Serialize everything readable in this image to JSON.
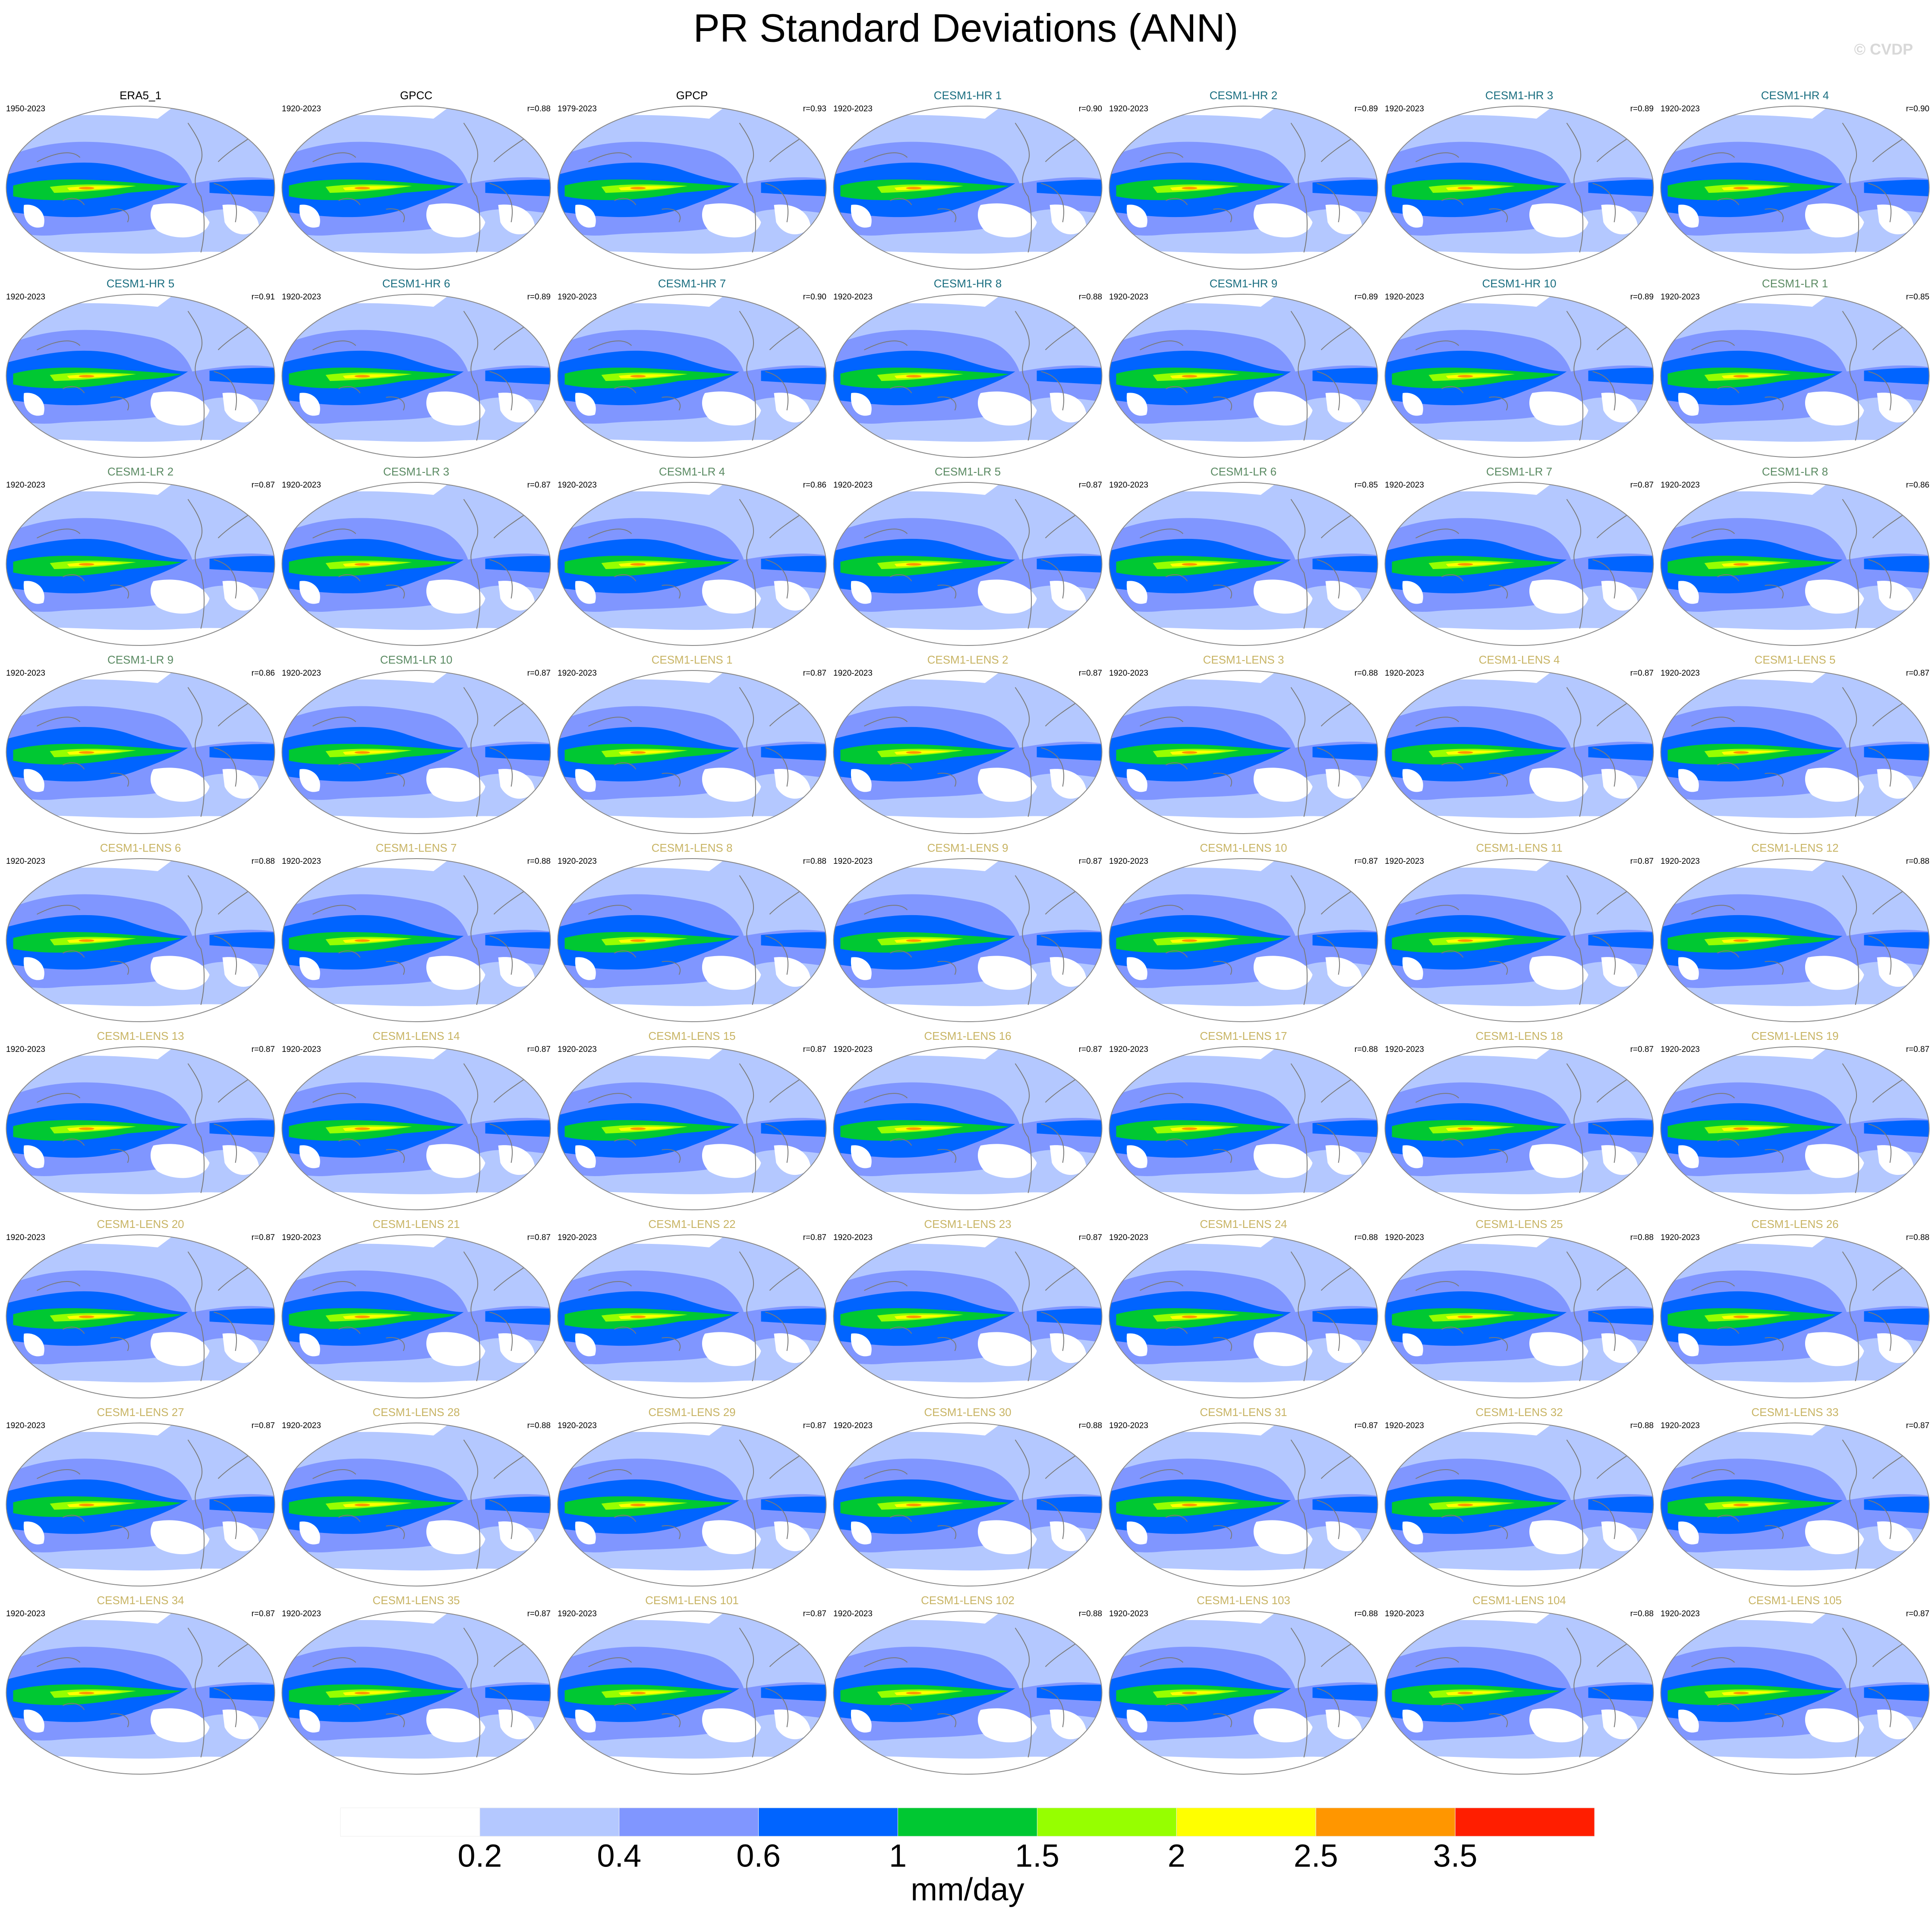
{
  "title": "PR Standard Deviations (ANN)",
  "watermark": "© CVDP",
  "panels": [
    {
      "title": "ERA5_1",
      "period": "1950-2023",
      "color": "#000000"
    },
    {
      "title": "GPCC",
      "period": "1920-2023",
      "r": "r=0.88",
      "color": "#000000"
    },
    {
      "title": "GPCP",
      "period": "1979-2023",
      "r": "r=0.93",
      "color": "#000000"
    },
    {
      "title": "CESM1-HR 1",
      "period": "1920-2023",
      "r": "r=0.90",
      "color": "#1a6e80"
    },
    {
      "title": "CESM1-HR 2",
      "period": "1920-2023",
      "r": "r=0.89",
      "color": "#1a6e80"
    },
    {
      "title": "CESM1-HR 3",
      "period": "1920-2023",
      "r": "r=0.89",
      "color": "#1a6e80"
    },
    {
      "title": "CESM1-HR 4",
      "period": "1920-2023",
      "r": "r=0.90",
      "color": "#1a6e80"
    },
    {
      "title": "CESM1-HR 5",
      "period": "1920-2023",
      "r": "r=0.91",
      "color": "#1a6e80"
    },
    {
      "title": "CESM1-HR 6",
      "period": "1920-2023",
      "r": "r=0.89",
      "color": "#1a6e80"
    },
    {
      "title": "CESM1-HR 7",
      "period": "1920-2023",
      "r": "r=0.90",
      "color": "#1a6e80"
    },
    {
      "title": "CESM1-HR 8",
      "period": "1920-2023",
      "r": "r=0.88",
      "color": "#1a6e80"
    },
    {
      "title": "CESM1-HR 9",
      "period": "1920-2023",
      "r": "r=0.89",
      "color": "#1a6e80"
    },
    {
      "title": "CESM1-HR 10",
      "period": "1920-2023",
      "r": "r=0.89",
      "color": "#1a6e80"
    },
    {
      "title": "CESM1-LR 1",
      "period": "1920-2023",
      "r": "r=0.85",
      "color": "#5a8a62"
    },
    {
      "title": "CESM1-LR 2",
      "period": "1920-2023",
      "r": "r=0.87",
      "color": "#5a8a62"
    },
    {
      "title": "CESM1-LR 3",
      "period": "1920-2023",
      "r": "r=0.87",
      "color": "#5a8a62"
    },
    {
      "title": "CESM1-LR 4",
      "period": "1920-2023",
      "r": "r=0.86",
      "color": "#5a8a62"
    },
    {
      "title": "CESM1-LR 5",
      "period": "1920-2023",
      "r": "r=0.87",
      "color": "#5a8a62"
    },
    {
      "title": "CESM1-LR 6",
      "period": "1920-2023",
      "r": "r=0.85",
      "color": "#5a8a62"
    },
    {
      "title": "CESM1-LR 7",
      "period": "1920-2023",
      "r": "r=0.87",
      "color": "#5a8a62"
    },
    {
      "title": "CESM1-LR 8",
      "period": "1920-2023",
      "r": "r=0.86",
      "color": "#5a8a62"
    },
    {
      "title": "CESM1-LR 9",
      "period": "1920-2023",
      "r": "r=0.86",
      "color": "#5a8a62"
    },
    {
      "title": "CESM1-LR 10",
      "period": "1920-2023",
      "r": "r=0.87",
      "color": "#5a8a62"
    },
    {
      "title": "CESM1-LENS 1",
      "period": "1920-2023",
      "r": "r=0.87",
      "color": "#c8b464"
    },
    {
      "title": "CESM1-LENS 2",
      "period": "1920-2023",
      "r": "r=0.87",
      "color": "#c8b464"
    },
    {
      "title": "CESM1-LENS 3",
      "period": "1920-2023",
      "r": "r=0.88",
      "color": "#c8b464"
    },
    {
      "title": "CESM1-LENS 4",
      "period": "1920-2023",
      "r": "r=0.87",
      "color": "#c8b464"
    },
    {
      "title": "CESM1-LENS 5",
      "period": "1920-2023",
      "r": "r=0.87",
      "color": "#c8b464"
    },
    {
      "title": "CESM1-LENS 6",
      "period": "1920-2023",
      "r": "r=0.88",
      "color": "#c8b464"
    },
    {
      "title": "CESM1-LENS 7",
      "period": "1920-2023",
      "r": "r=0.88",
      "color": "#c8b464"
    },
    {
      "title": "CESM1-LENS 8",
      "period": "1920-2023",
      "r": "r=0.88",
      "color": "#c8b464"
    },
    {
      "title": "CESM1-LENS 9",
      "period": "1920-2023",
      "r": "r=0.87",
      "color": "#c8b464"
    },
    {
      "title": "CESM1-LENS 10",
      "period": "1920-2023",
      "r": "r=0.87",
      "color": "#c8b464"
    },
    {
      "title": "CESM1-LENS 11",
      "period": "1920-2023",
      "r": "r=0.87",
      "color": "#c8b464"
    },
    {
      "title": "CESM1-LENS 12",
      "period": "1920-2023",
      "r": "r=0.88",
      "color": "#c8b464"
    },
    {
      "title": "CESM1-LENS 13",
      "period": "1920-2023",
      "r": "r=0.87",
      "color": "#c8b464"
    },
    {
      "title": "CESM1-LENS 14",
      "period": "1920-2023",
      "r": "r=0.87",
      "color": "#c8b464"
    },
    {
      "title": "CESM1-LENS 15",
      "period": "1920-2023",
      "r": "r=0.87",
      "color": "#c8b464"
    },
    {
      "title": "CESM1-LENS 16",
      "period": "1920-2023",
      "r": "r=0.87",
      "color": "#c8b464"
    },
    {
      "title": "CESM1-LENS 17",
      "period": "1920-2023",
      "r": "r=0.88",
      "color": "#c8b464"
    },
    {
      "title": "CESM1-LENS 18",
      "period": "1920-2023",
      "r": "r=0.87",
      "color": "#c8b464"
    },
    {
      "title": "CESM1-LENS 19",
      "period": "1920-2023",
      "r": "r=0.87",
      "color": "#c8b464"
    },
    {
      "title": "CESM1-LENS 20",
      "period": "1920-2023",
      "r": "r=0.87",
      "color": "#c8b464"
    },
    {
      "title": "CESM1-LENS 21",
      "period": "1920-2023",
      "r": "r=0.87",
      "color": "#c8b464"
    },
    {
      "title": "CESM1-LENS 22",
      "period": "1920-2023",
      "r": "r=0.87",
      "color": "#c8b464"
    },
    {
      "title": "CESM1-LENS 23",
      "period": "1920-2023",
      "r": "r=0.87",
      "color": "#c8b464"
    },
    {
      "title": "CESM1-LENS 24",
      "period": "1920-2023",
      "r": "r=0.88",
      "color": "#c8b464"
    },
    {
      "title": "CESM1-LENS 25",
      "period": "1920-2023",
      "r": "r=0.88",
      "color": "#c8b464"
    },
    {
      "title": "CESM1-LENS 26",
      "period": "1920-2023",
      "r": "r=0.88",
      "color": "#c8b464"
    },
    {
      "title": "CESM1-LENS 27",
      "period": "1920-2023",
      "r": "r=0.87",
      "color": "#c8b464"
    },
    {
      "title": "CESM1-LENS 28",
      "period": "1920-2023",
      "r": "r=0.88",
      "color": "#c8b464"
    },
    {
      "title": "CESM1-LENS 29",
      "period": "1920-2023",
      "r": "r=0.87",
      "color": "#c8b464"
    },
    {
      "title": "CESM1-LENS 30",
      "period": "1920-2023",
      "r": "r=0.88",
      "color": "#c8b464"
    },
    {
      "title": "CESM1-LENS 31",
      "period": "1920-2023",
      "r": "r=0.87",
      "color": "#c8b464"
    },
    {
      "title": "CESM1-LENS 32",
      "period": "1920-2023",
      "r": "r=0.88",
      "color": "#c8b464"
    },
    {
      "title": "CESM1-LENS 33",
      "period": "1920-2023",
      "r": "r=0.87",
      "color": "#c8b464"
    },
    {
      "title": "CESM1-LENS 34",
      "period": "1920-2023",
      "r": "r=0.87",
      "color": "#c8b464"
    },
    {
      "title": "CESM1-LENS 35",
      "period": "1920-2023",
      "r": "r=0.87",
      "color": "#c8b464"
    },
    {
      "title": "CESM1-LENS 101",
      "period": "1920-2023",
      "r": "r=0.87",
      "color": "#c8b464"
    },
    {
      "title": "CESM1-LENS 102",
      "period": "1920-2023",
      "r": "r=0.88",
      "color": "#c8b464"
    },
    {
      "title": "CESM1-LENS 103",
      "period": "1920-2023",
      "r": "r=0.88",
      "color": "#c8b464"
    },
    {
      "title": "CESM1-LENS 104",
      "period": "1920-2023",
      "r": "r=0.88",
      "color": "#c8b464"
    },
    {
      "title": "CESM1-LENS 105",
      "period": "1920-2023",
      "r": "r=0.87",
      "color": "#c8b464"
    }
  ],
  "colorbar": {
    "levels": [
      0.2,
      0.4,
      0.6,
      1,
      1.5,
      2,
      2.5,
      3.5
    ],
    "colors": [
      "#ffffff",
      "#b4c8ff",
      "#8096ff",
      "#0064ff",
      "#00c832",
      "#96ff00",
      "#ffff00",
      "#ff9600",
      "#ff1e00"
    ],
    "label": "mm/day"
  }
}
